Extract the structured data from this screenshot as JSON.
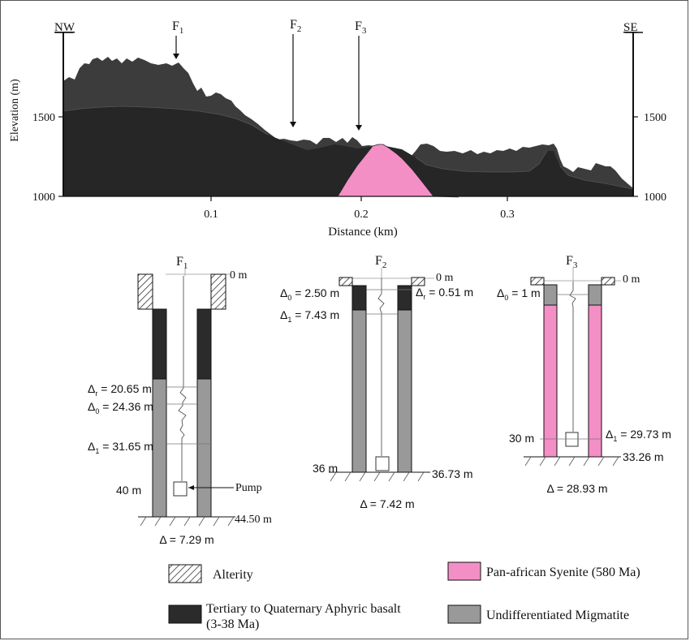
{
  "profile": {
    "nw_label": "NW",
    "se_label": "SE",
    "faults": [
      {
        "main": "F",
        "sub": "1"
      },
      {
        "main": "F",
        "sub": "2"
      },
      {
        "main": "F",
        "sub": "3"
      }
    ],
    "y_axis_label": "Elevation (m)",
    "y_ticks_left": [
      "1500",
      "1000"
    ],
    "y_ticks_right": [
      "1500",
      "1000"
    ],
    "x_ticks": [
      "0.1",
      "0.2",
      "0.3"
    ],
    "x_axis_label": "Distance (km)"
  },
  "wells": [
    {
      "fault_main": "F",
      "fault_sub": "1",
      "top": "0 m",
      "labels": [
        {
          "sym": "Δ",
          "sub": "r",
          "text": " = 20.65 m"
        },
        {
          "sym": "Δ",
          "sub": "0",
          "text": " = 24.36 m"
        },
        {
          "sym": "Δ",
          "sub": "1",
          "text": " = 31.65 m"
        }
      ],
      "depth_left": "40 m",
      "pump": "Pump",
      "depth_right": "44.50 m",
      "delta": "Δ = 7.29 m"
    },
    {
      "fault_main": "F",
      "fault_sub": "2",
      "top": "0 m",
      "labels": [
        {
          "sym": "Δ",
          "sub": "0",
          "text": " = 2.50 m"
        },
        {
          "sym": "Δ",
          "sub": "1",
          "text": " = 7.43 m"
        }
      ],
      "right_label": {
        "sym": "Δ",
        "sub": "r",
        "text": " = 0.51 m"
      },
      "depth_left": "36 m",
      "depth_right": "36.73 m",
      "delta": "Δ = 7.42 m"
    },
    {
      "fault_main": "F",
      "fault_sub": "3",
      "top": "0 m",
      "labels": [
        {
          "sym": "Δ",
          "sub": "0",
          "text": " = 1 m"
        }
      ],
      "right_label": {
        "sym": "Δ",
        "sub": "1",
        "text": " = 29.73 m"
      },
      "depth_left": "30 m",
      "depth_right": "33.26 m",
      "delta": "Δ = 28.93 m"
    }
  ],
  "legend": {
    "alterity": "Alterity",
    "basalt_line1": "Tertiary to Quaternary Aphyric basalt",
    "basalt_line2": "(3-38 Ma)",
    "syenite": "Pan-african Syenite (580 Ma)",
    "migmatite": "Undifferentiated Migmatite"
  },
  "colors": {
    "basalt": "#2b2b2b",
    "basalt_upper": "#3c3c3c",
    "migmatite": "#999999",
    "syenite": "#f48fc6"
  }
}
